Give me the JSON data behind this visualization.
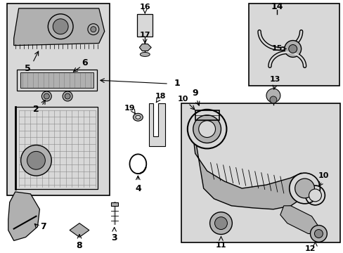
{
  "bg_color": "#ffffff",
  "gray_light": "#d8d8d8",
  "gray_mid": "#b0b0b0",
  "gray_dark": "#888888",
  "black": "#000000",
  "fig_w": 4.89,
  "fig_h": 3.6,
  "dpi": 100
}
